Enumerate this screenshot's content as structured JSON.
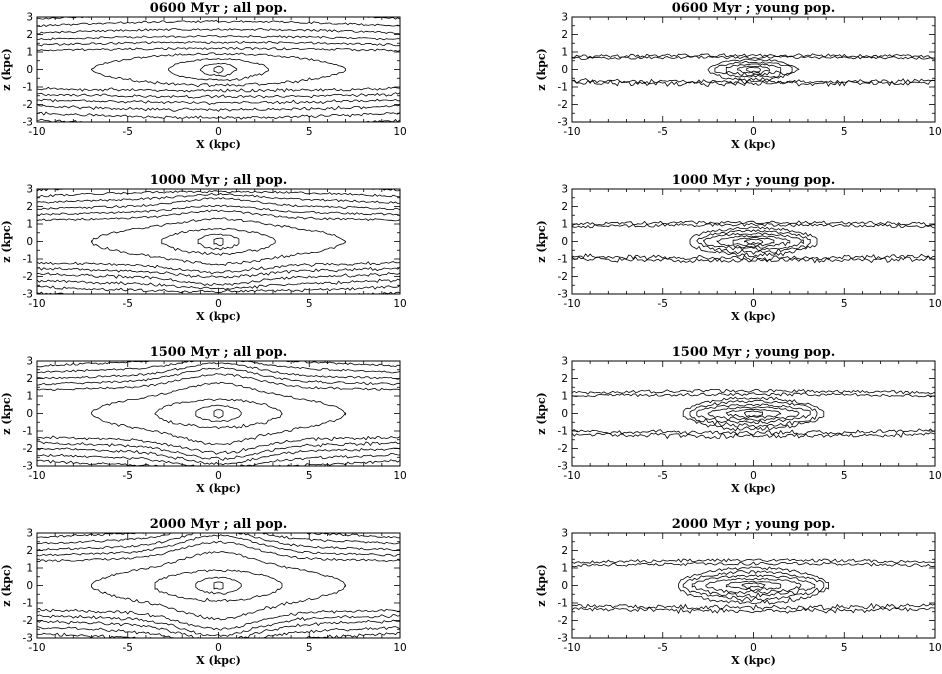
{
  "chart_data": [
    {
      "type": "contour",
      "title": "0600 Myr ; all pop.",
      "xlabel": "X (kpc)",
      "ylabel": "z (kpc)",
      "xlim": [
        -10,
        10
      ],
      "ylim": [
        -3,
        3
      ],
      "xticks": [
        -10,
        -5,
        0,
        5,
        10
      ],
      "yticks": [
        -3,
        -2,
        -1,
        0,
        1,
        2,
        3
      ],
      "population": "all",
      "scale_height": [
        0.18,
        0.35,
        0.6,
        0.9,
        1.2,
        1.55,
        1.9,
        2.3,
        2.75,
        3.2,
        3.7
      ],
      "half_length": [
        0.3,
        1.0,
        2.8,
        7.0,
        100,
        100,
        100,
        100,
        100,
        100,
        100
      ],
      "bulge": [
        0,
        0,
        0,
        0,
        0,
        0,
        0,
        0,
        0,
        0,
        0
      ]
    },
    {
      "type": "contour",
      "title": "0600 Myr ; young pop.",
      "xlabel": "X (kpc)",
      "ylabel": "z (kpc)",
      "xlim": [
        -10,
        10
      ],
      "ylim": [
        -3,
        3
      ],
      "xticks": [
        -10,
        -5,
        0,
        5,
        10
      ],
      "yticks": [
        -3,
        -2,
        -1,
        0,
        1,
        2,
        3
      ],
      "population": "young",
      "scale_height": [
        0.12,
        0.2,
        0.3,
        0.42,
        0.55,
        0.7,
        0.82
      ],
      "half_length": [
        0.4,
        0.9,
        1.6,
        2.2,
        2.5,
        100,
        100
      ],
      "bulge": [
        0,
        0,
        0,
        0,
        0,
        0,
        0
      ]
    },
    {
      "type": "contour",
      "title": "1000 Myr ; all pop.",
      "xlabel": "X (kpc)",
      "ylabel": "z (kpc)",
      "xlim": [
        -10,
        10
      ],
      "ylim": [
        -3,
        3
      ],
      "xticks": [
        -10,
        -5,
        0,
        5,
        10
      ],
      "yticks": [
        -3,
        -2,
        -1,
        0,
        1,
        2,
        3
      ],
      "population": "all",
      "scale_height": [
        0.2,
        0.4,
        0.7,
        1.0,
        1.35,
        1.7,
        2.05,
        2.45,
        2.85,
        3.25,
        3.7
      ],
      "half_length": [
        0.35,
        1.2,
        3.2,
        7.0,
        100,
        100,
        100,
        100,
        100,
        100,
        100
      ],
      "bulge": [
        0,
        0,
        0,
        0.3,
        0.3,
        0.2,
        0.2,
        0.1,
        0,
        0,
        0
      ]
    },
    {
      "type": "contour",
      "title": "1000 Myr ; young pop.",
      "xlabel": "X (kpc)",
      "ylabel": "z (kpc)",
      "xlim": [
        -10,
        10
      ],
      "ylim": [
        -3,
        3
      ],
      "xticks": [
        -10,
        -5,
        0,
        5,
        10
      ],
      "yticks": [
        -3,
        -2,
        -1,
        0,
        1,
        2,
        3
      ],
      "population": "young",
      "scale_height": [
        0.12,
        0.2,
        0.3,
        0.45,
        0.6,
        0.78,
        0.95,
        1.1
      ],
      "half_length": [
        0.5,
        1.2,
        2.0,
        2.8,
        3.2,
        3.6,
        100,
        100
      ],
      "bulge": [
        0,
        0,
        0,
        0,
        0,
        0,
        0,
        0
      ]
    },
    {
      "type": "contour",
      "title": "1500 Myr ; all pop.",
      "xlabel": "X (kpc)",
      "ylabel": "z (kpc)",
      "xlim": [
        -10,
        10
      ],
      "ylim": [
        -3,
        3
      ],
      "xticks": [
        -10,
        -5,
        0,
        5,
        10
      ],
      "yticks": [
        -3,
        -2,
        -1,
        0,
        1,
        2,
        3
      ],
      "population": "all",
      "scale_height": [
        0.2,
        0.45,
        0.8,
        1.15,
        1.5,
        1.85,
        2.2,
        2.6,
        3.0,
        3.4,
        3.8
      ],
      "half_length": [
        0.35,
        1.3,
        3.5,
        7.0,
        100,
        100,
        100,
        100,
        100,
        100,
        100
      ],
      "bulge": [
        0,
        0,
        0,
        0.5,
        0.5,
        0.4,
        0.3,
        0.2,
        0.1,
        0,
        0
      ]
    },
    {
      "type": "contour",
      "title": "1500 Myr ; young pop.",
      "xlabel": "X (kpc)",
      "ylabel": "z (kpc)",
      "xlim": [
        -10,
        10
      ],
      "ylim": [
        -3,
        3
      ],
      "xticks": [
        -10,
        -5,
        0,
        5,
        10
      ],
      "yticks": [
        -3,
        -2,
        -1,
        0,
        1,
        2,
        3
      ],
      "population": "young",
      "scale_height": [
        0.12,
        0.22,
        0.35,
        0.5,
        0.7,
        0.9,
        1.1,
        1.3
      ],
      "half_length": [
        0.6,
        1.5,
        2.5,
        3.2,
        3.6,
        3.9,
        100,
        100
      ],
      "bulge": [
        0,
        0,
        0,
        0,
        0,
        0,
        0,
        0
      ]
    },
    {
      "type": "contour",
      "title": "2000 Myr ; all pop.",
      "xlabel": "X (kpc)",
      "ylabel": "z (kpc)",
      "xlim": [
        -10,
        10
      ],
      "ylim": [
        -3,
        3
      ],
      "xticks": [
        -10,
        -5,
        0,
        5,
        10
      ],
      "yticks": [
        -3,
        -2,
        -1,
        0,
        1,
        2,
        3
      ],
      "population": "all",
      "scale_height": [
        0.2,
        0.45,
        0.85,
        1.2,
        1.55,
        1.9,
        2.25,
        2.65,
        3.05,
        3.45,
        3.85
      ],
      "half_length": [
        0.35,
        1.3,
        3.6,
        7.0,
        100,
        100,
        100,
        100,
        100,
        100,
        100
      ],
      "bulge": [
        0,
        0,
        0,
        0.6,
        0.6,
        0.5,
        0.4,
        0.3,
        0.1,
        0,
        0
      ]
    },
    {
      "type": "contour",
      "title": "2000 Myr ; young pop.",
      "xlabel": "X (kpc)",
      "ylabel": "z (kpc)",
      "xlim": [
        -10,
        10
      ],
      "ylim": [
        -3,
        3
      ],
      "xticks": [
        -10,
        -5,
        0,
        5,
        10
      ],
      "yticks": [
        -3,
        -2,
        -1,
        0,
        1,
        2,
        3
      ],
      "population": "young",
      "scale_height": [
        0.12,
        0.22,
        0.38,
        0.55,
        0.78,
        1.0,
        1.25,
        1.45
      ],
      "half_length": [
        0.7,
        1.6,
        2.7,
        3.4,
        3.9,
        4.2,
        100,
        100
      ],
      "bulge": [
        0,
        0,
        0,
        0,
        0,
        0,
        0,
        0
      ]
    }
  ]
}
